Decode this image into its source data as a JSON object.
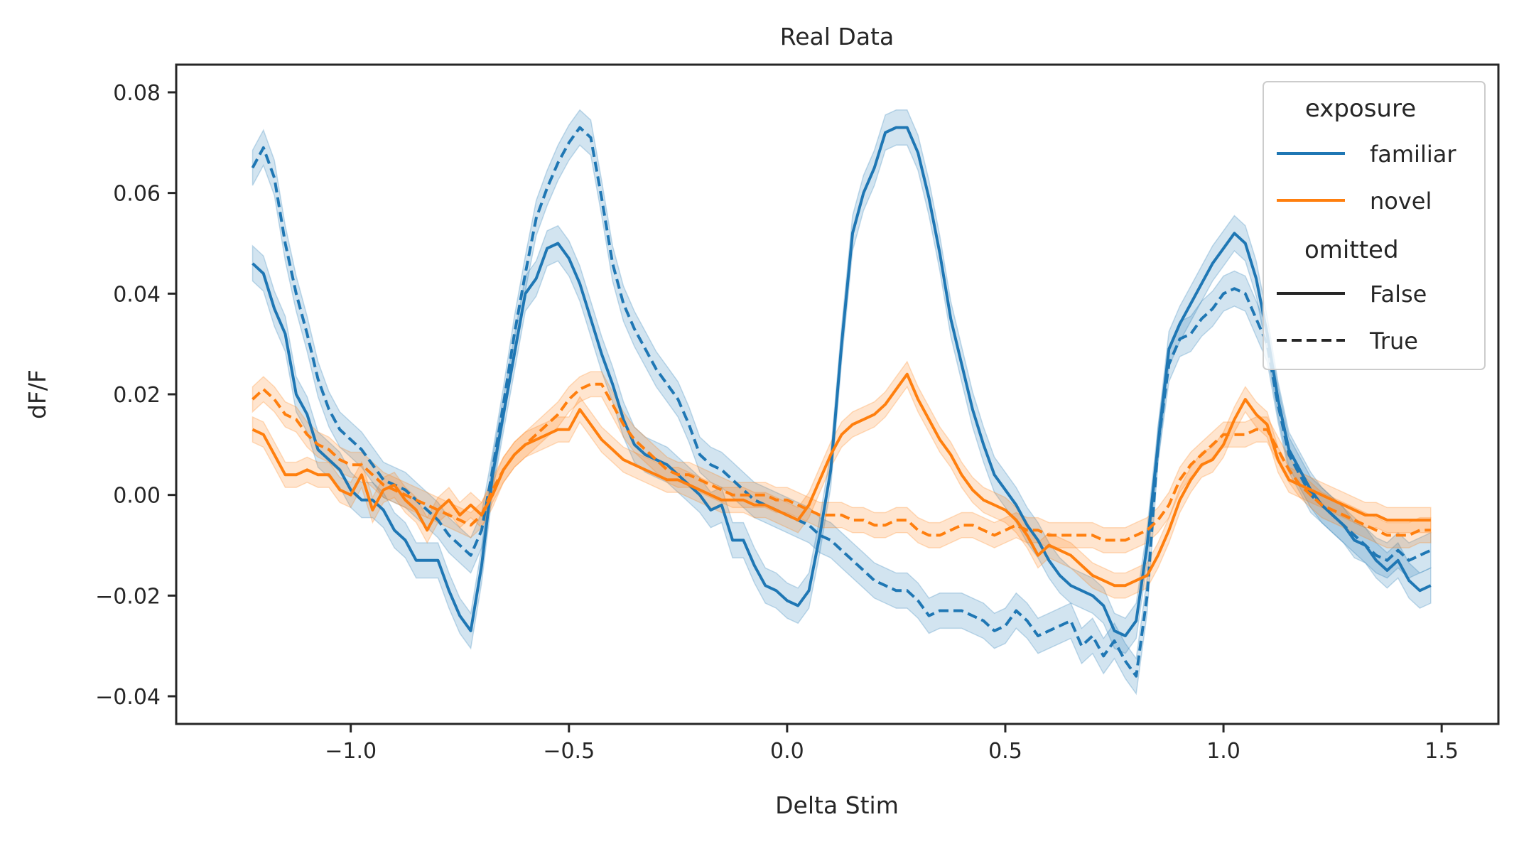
{
  "chart_data": {
    "type": "line",
    "title": "Real Data",
    "xlabel": "Delta Stim",
    "ylabel": "dF/F",
    "xlim": [
      -1.4,
      1.63
    ],
    "ylim": [
      -0.0455,
      0.0855
    ],
    "xticks": [
      -1.0,
      -0.5,
      0.0,
      0.5,
      1.0,
      1.5
    ],
    "xtick_labels": [
      "−1.0",
      "−0.5",
      "0.0",
      "0.5",
      "1.0",
      "1.5"
    ],
    "yticks": [
      -0.04,
      -0.02,
      0.0,
      0.02,
      0.04,
      0.06,
      0.08
    ],
    "ytick_labels": [
      "−0.04",
      "−0.02",
      "0.00",
      "0.02",
      "0.04",
      "0.06",
      "0.08"
    ],
    "grid": false,
    "legend": {
      "placement": "top-right",
      "hue_title": "exposure",
      "style_title": "omitted",
      "entries": [
        {
          "label": "familiar",
          "color": "#1f77b4",
          "dash": "solid"
        },
        {
          "label": "novel",
          "color": "#ff7f0e",
          "dash": "solid"
        },
        {
          "label": "False",
          "color": "#262626",
          "dash": "solid"
        },
        {
          "label": "True",
          "color": "#262626",
          "dash": "dashed"
        }
      ]
    },
    "colors": {
      "familiar": "#1f77b4",
      "novel": "#ff7f0e",
      "band_alpha": 0.2
    },
    "x": [
      -1.225,
      -1.2,
      -1.175,
      -1.15,
      -1.125,
      -1.1,
      -1.075,
      -1.05,
      -1.025,
      -1.0,
      -0.975,
      -0.95,
      -0.925,
      -0.9,
      -0.875,
      -0.85,
      -0.825,
      -0.8,
      -0.775,
      -0.75,
      -0.725,
      -0.7,
      -0.675,
      -0.65,
      -0.625,
      -0.6,
      -0.575,
      -0.55,
      -0.525,
      -0.5,
      -0.475,
      -0.45,
      -0.425,
      -0.4,
      -0.375,
      -0.35,
      -0.325,
      -0.3,
      -0.275,
      -0.25,
      -0.225,
      -0.2,
      -0.175,
      -0.15,
      -0.125,
      -0.1,
      -0.075,
      -0.05,
      -0.025,
      0.0,
      0.025,
      0.05,
      0.075,
      0.1,
      0.125,
      0.15,
      0.175,
      0.2,
      0.225,
      0.25,
      0.275,
      0.3,
      0.325,
      0.35,
      0.375,
      0.4,
      0.425,
      0.45,
      0.475,
      0.5,
      0.525,
      0.55,
      0.575,
      0.6,
      0.625,
      0.65,
      0.675,
      0.7,
      0.725,
      0.75,
      0.775,
      0.8,
      0.825,
      0.85,
      0.875,
      0.9,
      0.925,
      0.95,
      0.975,
      1.0,
      1.025,
      1.05,
      1.075,
      1.1,
      1.125,
      1.15,
      1.175,
      1.2,
      1.225,
      1.25,
      1.275,
      1.3,
      1.325,
      1.35,
      1.375,
      1.4,
      1.425,
      1.45,
      1.475
    ],
    "series": [
      {
        "name": "familiar / False",
        "exposure": "familiar",
        "omitted": "False",
        "values": [
          0.046,
          0.044,
          0.037,
          0.032,
          0.02,
          0.016,
          0.009,
          0.007,
          0.005,
          0.001,
          -0.001,
          -0.001,
          -0.003,
          -0.007,
          -0.009,
          -0.013,
          -0.013,
          -0.013,
          -0.019,
          -0.024,
          -0.027,
          -0.014,
          0.004,
          0.016,
          0.028,
          0.04,
          0.043,
          0.049,
          0.05,
          0.047,
          0.042,
          0.035,
          0.028,
          0.022,
          0.015,
          0.01,
          0.008,
          0.007,
          0.006,
          0.004,
          0.002,
          0.0,
          -0.003,
          -0.002,
          -0.009,
          -0.009,
          -0.014,
          -0.018,
          -0.019,
          -0.021,
          -0.022,
          -0.019,
          -0.008,
          0.005,
          0.03,
          0.052,
          0.06,
          0.065,
          0.072,
          0.073,
          0.073,
          0.068,
          0.059,
          0.048,
          0.035,
          0.026,
          0.017,
          0.01,
          0.004,
          0.001,
          -0.002,
          -0.006,
          -0.009,
          -0.013,
          -0.016,
          -0.018,
          -0.019,
          -0.02,
          -0.022,
          -0.027,
          -0.028,
          -0.025,
          -0.01,
          0.01,
          0.029,
          0.034,
          0.038,
          0.042,
          0.046,
          0.049,
          0.052,
          0.05,
          0.043,
          0.032,
          0.019,
          0.009,
          0.005,
          0.001,
          -0.002,
          -0.004,
          -0.006,
          -0.009,
          -0.01,
          -0.013,
          -0.015,
          -0.013,
          -0.017,
          -0.019,
          -0.018
        ]
      },
      {
        "name": "familiar / True",
        "exposure": "familiar",
        "omitted": "True",
        "values": [
          0.065,
          0.069,
          0.063,
          0.05,
          0.04,
          0.032,
          0.023,
          0.017,
          0.013,
          0.011,
          0.009,
          0.006,
          0.003,
          0.002,
          0.001,
          -0.001,
          -0.003,
          -0.005,
          -0.008,
          -0.01,
          -0.012,
          -0.007,
          0.005,
          0.018,
          0.032,
          0.044,
          0.055,
          0.061,
          0.066,
          0.07,
          0.073,
          0.071,
          0.059,
          0.046,
          0.038,
          0.033,
          0.029,
          0.025,
          0.022,
          0.019,
          0.014,
          0.008,
          0.006,
          0.005,
          0.003,
          0.001,
          -0.001,
          -0.002,
          -0.003,
          -0.004,
          -0.005,
          -0.006,
          -0.008,
          -0.009,
          -0.011,
          -0.013,
          -0.015,
          -0.017,
          -0.018,
          -0.019,
          -0.019,
          -0.021,
          -0.024,
          -0.023,
          -0.023,
          -0.023,
          -0.024,
          -0.025,
          -0.027,
          -0.026,
          -0.023,
          -0.025,
          -0.028,
          -0.027,
          -0.026,
          -0.025,
          -0.03,
          -0.028,
          -0.032,
          -0.029,
          -0.033,
          -0.036,
          -0.02,
          0.01,
          0.026,
          0.031,
          0.032,
          0.035,
          0.037,
          0.04,
          0.041,
          0.04,
          0.035,
          0.03,
          0.018,
          0.008,
          0.004,
          0.0,
          -0.002,
          -0.004,
          -0.006,
          -0.008,
          -0.01,
          -0.012,
          -0.013,
          -0.011,
          -0.013,
          -0.012,
          -0.011
        ]
      },
      {
        "name": "novel / False",
        "exposure": "novel",
        "omitted": "False",
        "values": [
          0.013,
          0.012,
          0.008,
          0.004,
          0.004,
          0.005,
          0.004,
          0.004,
          0.001,
          0.0,
          0.004,
          -0.003,
          0.001,
          0.002,
          -0.001,
          -0.003,
          -0.007,
          -0.003,
          -0.001,
          -0.004,
          -0.002,
          -0.004,
          0.0,
          0.005,
          0.008,
          0.01,
          0.011,
          0.012,
          0.013,
          0.013,
          0.017,
          0.014,
          0.011,
          0.009,
          0.007,
          0.006,
          0.005,
          0.004,
          0.003,
          0.003,
          0.002,
          0.001,
          0.0,
          -0.001,
          -0.001,
          -0.001,
          -0.002,
          -0.002,
          -0.003,
          -0.004,
          -0.005,
          -0.002,
          0.003,
          0.008,
          0.012,
          0.014,
          0.015,
          0.016,
          0.018,
          0.021,
          0.024,
          0.019,
          0.015,
          0.011,
          0.008,
          0.004,
          0.001,
          -0.001,
          -0.002,
          -0.003,
          -0.005,
          -0.008,
          -0.012,
          -0.01,
          -0.011,
          -0.012,
          -0.014,
          -0.016,
          -0.017,
          -0.018,
          -0.018,
          -0.017,
          -0.016,
          -0.012,
          -0.007,
          -0.001,
          0.003,
          0.006,
          0.007,
          0.01,
          0.015,
          0.019,
          0.016,
          0.014,
          0.007,
          0.003,
          0.002,
          0.001,
          0.0,
          -0.001,
          -0.002,
          -0.003,
          -0.004,
          -0.004,
          -0.005,
          -0.005,
          -0.005,
          -0.005,
          -0.005
        ]
      },
      {
        "name": "novel / True",
        "exposure": "novel",
        "omitted": "True",
        "values": [
          0.019,
          0.021,
          0.019,
          0.016,
          0.015,
          0.012,
          0.01,
          0.009,
          0.007,
          0.006,
          0.006,
          0.004,
          0.002,
          0.001,
          0.0,
          -0.001,
          -0.002,
          -0.003,
          -0.004,
          -0.005,
          -0.006,
          -0.004,
          0.001,
          0.005,
          0.008,
          0.01,
          0.012,
          0.014,
          0.016,
          0.019,
          0.021,
          0.022,
          0.022,
          0.018,
          0.014,
          0.011,
          0.009,
          0.007,
          0.005,
          0.004,
          0.004,
          0.003,
          0.002,
          0.001,
          0.0,
          0.0,
          0.0,
          0.0,
          -0.001,
          -0.001,
          -0.002,
          -0.003,
          -0.004,
          -0.004,
          -0.004,
          -0.005,
          -0.005,
          -0.006,
          -0.006,
          -0.005,
          -0.005,
          -0.007,
          -0.008,
          -0.008,
          -0.007,
          -0.006,
          -0.006,
          -0.007,
          -0.008,
          -0.007,
          -0.006,
          -0.007,
          -0.007,
          -0.008,
          -0.008,
          -0.008,
          -0.008,
          -0.008,
          -0.009,
          -0.009,
          -0.009,
          -0.008,
          -0.007,
          -0.005,
          -0.002,
          0.003,
          0.006,
          0.008,
          0.01,
          0.012,
          0.012,
          0.012,
          0.013,
          0.013,
          0.009,
          0.005,
          0.002,
          0.0,
          -0.002,
          -0.003,
          -0.004,
          -0.005,
          -0.006,
          -0.007,
          -0.008,
          -0.008,
          -0.008,
          -0.007,
          -0.007
        ]
      }
    ]
  }
}
